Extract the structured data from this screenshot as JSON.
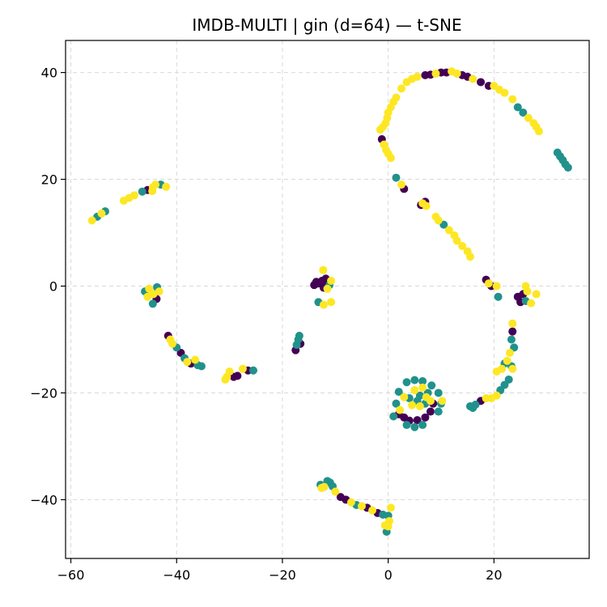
{
  "chart_data": {
    "type": "scatter",
    "title": "IMDB-MULTI | gin (d=64) — t-SNE",
    "xlabel": "",
    "ylabel": "",
    "xlim": [
      -61,
      38
    ],
    "ylim": [
      -51,
      46
    ],
    "x_ticks": [
      {
        "value": -60,
        "label": "−60"
      },
      {
        "value": -40,
        "label": "−40"
      },
      {
        "value": -20,
        "label": "−20"
      },
      {
        "value": 0,
        "label": "0"
      },
      {
        "value": 20,
        "label": "20"
      }
    ],
    "y_ticks": [
      {
        "value": -40,
        "label": "−40"
      },
      {
        "value": -20,
        "label": "−20"
      },
      {
        "value": 0,
        "label": "0"
      },
      {
        "value": 20,
        "label": "20"
      },
      {
        "value": 40,
        "label": "40"
      }
    ],
    "grid": true,
    "legend": "none",
    "colors": {
      "class_0": "#440154",
      "class_1": "#21918c",
      "class_2": "#fde725"
    },
    "points": [
      [
        -56,
        12.3,
        2
      ],
      [
        -55,
        13,
        1
      ],
      [
        -54.2,
        13.6,
        2
      ],
      [
        -53.5,
        14,
        1
      ],
      [
        -50,
        16,
        2
      ],
      [
        -49,
        16.5,
        2
      ],
      [
        -48,
        17,
        2
      ],
      [
        -46.5,
        17.7,
        1
      ],
      [
        -45.5,
        18,
        0
      ],
      [
        -44.5,
        18.5,
        2
      ],
      [
        -44,
        19,
        2
      ],
      [
        -43,
        19,
        1
      ],
      [
        -42,
        18.6,
        2
      ],
      [
        -44.6,
        17.8,
        2
      ],
      [
        -46,
        -1,
        1
      ],
      [
        -45.2,
        -0.5,
        2
      ],
      [
        -44.4,
        -1.5,
        2
      ],
      [
        -43.7,
        -0.2,
        1
      ],
      [
        -43.3,
        -1,
        2
      ],
      [
        -44.5,
        -3.3,
        1
      ],
      [
        -45.5,
        -2,
        2
      ],
      [
        -43.8,
        -2.4,
        0
      ],
      [
        -41.6,
        -9.3,
        0
      ],
      [
        -41.2,
        -10,
        2
      ],
      [
        -40.8,
        -10.8,
        2
      ],
      [
        -40,
        -11.5,
        1
      ],
      [
        -39.2,
        -12.5,
        0
      ],
      [
        -38.5,
        -13.5,
        1
      ],
      [
        -38,
        -14.2,
        2
      ],
      [
        -37.3,
        -14.5,
        0
      ],
      [
        -36.5,
        -13.8,
        2
      ],
      [
        -36,
        -14.8,
        1
      ],
      [
        -35.3,
        -15,
        1
      ],
      [
        -30.5,
        -17,
        2
      ],
      [
        -30,
        -16,
        2
      ],
      [
        -29.2,
        -17,
        0
      ],
      [
        -28.5,
        -16.8,
        0
      ],
      [
        -27.5,
        -15.5,
        2
      ],
      [
        -26.5,
        -15.8,
        0
      ],
      [
        -25.5,
        -15.8,
        1
      ],
      [
        -30.8,
        -17.5,
        2
      ],
      [
        -17.5,
        -12,
        0
      ],
      [
        -17.3,
        -11,
        1
      ],
      [
        -17,
        -10,
        1
      ],
      [
        -16.8,
        -9.3,
        1
      ],
      [
        -16.6,
        -10.8,
        0
      ],
      [
        -14,
        0.2,
        0
      ],
      [
        -13.2,
        0.5,
        0
      ],
      [
        -12.5,
        1,
        0
      ],
      [
        -12,
        0.3,
        0
      ],
      [
        -11.5,
        0.8,
        0
      ],
      [
        -12.2,
        -0.3,
        0
      ],
      [
        -11.1,
        0.2,
        1
      ],
      [
        -11.8,
        1.4,
        0
      ],
      [
        -12.3,
        3,
        2
      ],
      [
        -11.5,
        -0.5,
        2
      ],
      [
        -10.8,
        1,
        2
      ],
      [
        -13.2,
        -3,
        1
      ],
      [
        -10.8,
        -3,
        2
      ],
      [
        -12.2,
        -3.5,
        2
      ],
      [
        -13.6,
        0.8,
        0
      ],
      [
        -12.8,
        -37.2,
        1
      ],
      [
        -12.1,
        -37.6,
        2
      ],
      [
        -11.5,
        -36.5,
        1
      ],
      [
        -11,
        -36.8,
        1
      ],
      [
        -10.5,
        -37.5,
        1
      ],
      [
        -10,
        -38.5,
        2
      ],
      [
        -9,
        -39.5,
        0
      ],
      [
        -8,
        -40,
        0
      ],
      [
        -7,
        -40.5,
        2
      ],
      [
        -6,
        -41,
        1
      ],
      [
        -5,
        -41.2,
        2
      ],
      [
        -4,
        -41.5,
        0
      ],
      [
        -3,
        -42,
        2
      ],
      [
        -2,
        -42.5,
        0
      ],
      [
        -1,
        -42.8,
        1
      ],
      [
        0,
        -43,
        1
      ],
      [
        0.2,
        -44,
        2
      ],
      [
        0,
        -45,
        2
      ],
      [
        -0.3,
        -46,
        1
      ],
      [
        0.5,
        -41.5,
        2
      ],
      [
        -0.6,
        -44.8,
        2
      ],
      [
        -12.6,
        -37.8,
        2
      ],
      [
        -1.5,
        29.3,
        2
      ],
      [
        -1,
        29.8,
        2
      ],
      [
        -0.5,
        30.5,
        2
      ],
      [
        -0.2,
        31.5,
        2
      ],
      [
        0,
        32.5,
        2
      ],
      [
        0.5,
        33.5,
        2
      ],
      [
        1,
        34.5,
        2
      ],
      [
        1.5,
        35.3,
        2
      ],
      [
        2.5,
        37,
        2
      ],
      [
        3.5,
        38.2,
        2
      ],
      [
        4.5,
        38.8,
        2
      ],
      [
        5.5,
        39.2,
        2
      ],
      [
        7,
        39.5,
        0
      ],
      [
        8,
        39.6,
        0
      ],
      [
        9,
        39.8,
        2
      ],
      [
        10,
        40,
        0
      ],
      [
        11,
        40,
        0
      ],
      [
        12,
        40.2,
        2
      ],
      [
        13,
        39.8,
        2
      ],
      [
        14,
        39.5,
        0
      ],
      [
        15,
        39.2,
        0
      ],
      [
        16,
        38.8,
        2
      ],
      [
        17.5,
        38.2,
        0
      ],
      [
        19,
        37.5,
        0
      ],
      [
        20,
        37.5,
        2
      ],
      [
        21,
        36.8,
        2
      ],
      [
        22,
        36.2,
        2
      ],
      [
        23.5,
        35,
        2
      ],
      [
        24.5,
        33.5,
        1
      ],
      [
        25.5,
        32.5,
        1
      ],
      [
        26.5,
        31.5,
        2
      ],
      [
        27.5,
        30.5,
        2
      ],
      [
        28,
        29.8,
        2
      ],
      [
        28.5,
        29,
        2
      ],
      [
        -1.2,
        27.5,
        0
      ],
      [
        -0.8,
        26.5,
        2
      ],
      [
        -0.4,
        25.5,
        2
      ],
      [
        0,
        24.8,
        2
      ],
      [
        0.5,
        24,
        2
      ],
      [
        1.5,
        20.3,
        1
      ],
      [
        2.5,
        19,
        2
      ],
      [
        3,
        18.2,
        0
      ],
      [
        6.5,
        15.5,
        2
      ],
      [
        7,
        15.8,
        0
      ],
      [
        6.2,
        15.2,
        0
      ],
      [
        7.2,
        15,
        2
      ],
      [
        9,
        13,
        2
      ],
      [
        9.5,
        12.3,
        2
      ],
      [
        10.5,
        11.5,
        1
      ],
      [
        11.5,
        10.5,
        2
      ],
      [
        12.5,
        9.5,
        2
      ],
      [
        13,
        8.5,
        2
      ],
      [
        14,
        7.5,
        2
      ],
      [
        15,
        6.5,
        2
      ],
      [
        15.5,
        5.5,
        2
      ],
      [
        32,
        25,
        1
      ],
      [
        32.5,
        24.3,
        1
      ],
      [
        33,
        23.6,
        1
      ],
      [
        33.5,
        22.8,
        1
      ],
      [
        34,
        22.2,
        1
      ],
      [
        18.5,
        1.2,
        0
      ],
      [
        19,
        0.5,
        2
      ],
      [
        19.5,
        0,
        0
      ],
      [
        20.5,
        0,
        2
      ],
      [
        20.8,
        -2,
        1
      ],
      [
        24.5,
        -2,
        0
      ],
      [
        25.5,
        -1.5,
        0
      ],
      [
        25,
        -3,
        0
      ],
      [
        26,
        -2.8,
        1
      ],
      [
        26.3,
        -1,
        2
      ],
      [
        27,
        -3.2,
        2
      ],
      [
        28,
        -1.5,
        2
      ],
      [
        26,
        0,
        2
      ],
      [
        23.5,
        -7,
        2
      ],
      [
        23.5,
        -8.5,
        0
      ],
      [
        23.3,
        -10,
        1
      ],
      [
        23.8,
        -11.5,
        1
      ],
      [
        23,
        -12.5,
        2
      ],
      [
        22.5,
        -14,
        2
      ],
      [
        23.3,
        -15,
        1
      ],
      [
        23.5,
        -15.5,
        2
      ],
      [
        22.8,
        -17.5,
        1
      ],
      [
        22,
        -18.5,
        1
      ],
      [
        21.2,
        -19.5,
        1
      ],
      [
        20.5,
        -20.5,
        2
      ],
      [
        19.5,
        -21,
        2
      ],
      [
        18.5,
        -21,
        2
      ],
      [
        17.5,
        -21.5,
        0
      ],
      [
        16.5,
        -22.2,
        1
      ],
      [
        16,
        -22.8,
        1
      ],
      [
        15.5,
        -22.5,
        1
      ],
      [
        20.5,
        -16,
        2
      ],
      [
        22,
        -14.5,
        1
      ],
      [
        21.5,
        -15.5,
        2
      ],
      [
        2,
        -24,
        0
      ],
      [
        3,
        -24.6,
        0
      ],
      [
        4,
        -25.2,
        0
      ],
      [
        5.5,
        -25.1,
        0
      ],
      [
        7,
        -24.6,
        0
      ],
      [
        8,
        -23.5,
        0
      ],
      [
        8.5,
        -22,
        0
      ],
      [
        4,
        -21,
        1
      ],
      [
        6,
        -20.5,
        1
      ],
      [
        7.5,
        -20,
        1
      ],
      [
        5.5,
        -21.5,
        1
      ],
      [
        7,
        -22,
        1
      ],
      [
        5,
        -19.5,
        2
      ],
      [
        6.5,
        -19,
        2
      ],
      [
        7.2,
        -20.8,
        2
      ],
      [
        4.5,
        -22.3,
        2
      ],
      [
        6,
        -22.5,
        2
      ],
      [
        8,
        -21.5,
        2
      ],
      [
        3,
        -20.8,
        2
      ],
      [
        2,
        -19.8,
        1
      ],
      [
        3.5,
        -18,
        1
      ],
      [
        5,
        -17.6,
        1
      ],
      [
        6.5,
        -17.8,
        1
      ],
      [
        8.2,
        -18.6,
        1
      ],
      [
        9.5,
        -20,
        1
      ],
      [
        10,
        -22,
        1
      ],
      [
        1,
        -24.4,
        1
      ],
      [
        3.5,
        -26,
        1
      ],
      [
        5,
        -26.4,
        1
      ],
      [
        6.5,
        -26,
        1
      ],
      [
        1.5,
        -22,
        1
      ],
      [
        9.5,
        -23.5,
        1
      ],
      [
        2.2,
        -23.2,
        2
      ],
      [
        10.2,
        -21.5,
        2
      ]
    ]
  }
}
